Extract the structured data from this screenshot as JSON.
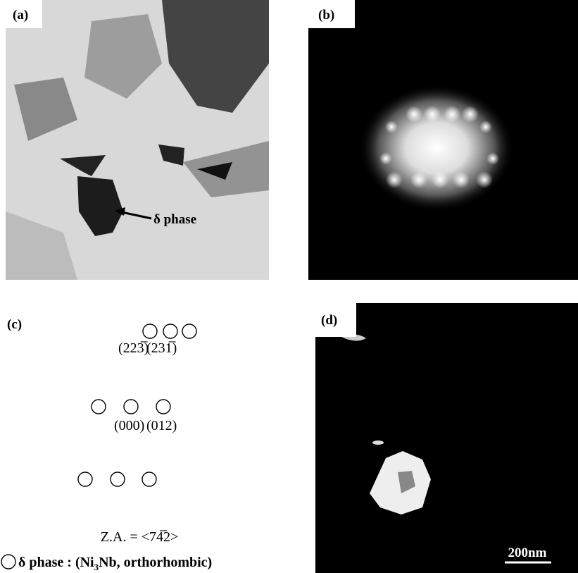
{
  "panels": [
    {
      "label": "(a)",
      "annotation": "δ phase"
    },
    {
      "label": "(b)"
    },
    {
      "label": "(c)",
      "indices": [
        "(223̅)",
        "(231̅)",
        "(000)",
        "(012)"
      ],
      "zone_axis": "Z.A. = <74̅2>",
      "legend": {
        "phase": "δ phase : (Ni",
        "subscript": "3",
        "rest": "Nb, orthorhombic)"
      }
    },
    {
      "label": "(d)",
      "scale_bar": "200nm"
    }
  ]
}
